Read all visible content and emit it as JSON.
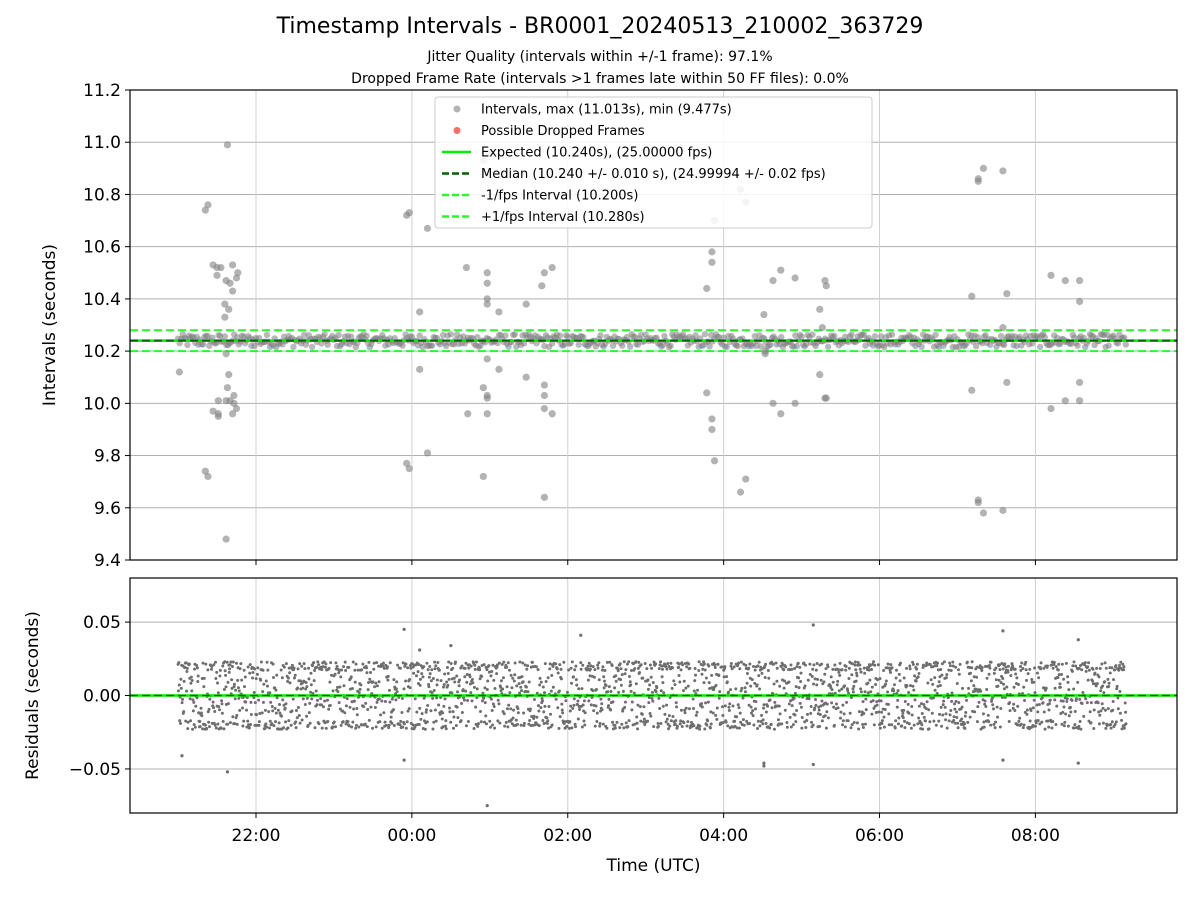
{
  "title": "Timestamp Intervals - BR0001_20240513_210002_363729",
  "subtitle_1": "Jitter Quality (intervals within +/-1 frame): 97.1%",
  "subtitle_2": "Dropped Frame Rate (intervals >1 frames late within 50 FF files): 0.0%",
  "colors": {
    "intervals": "#808080",
    "dropped": "#ff5a5a",
    "expected": "#00ee00",
    "median": "#006400",
    "fps_bounds": "#22ff22",
    "grid": "#b0b0b0"
  },
  "chart_data": [
    {
      "type": "scatter",
      "ylabel": "Intervals (seconds)",
      "ylim": [
        9.4,
        11.2
      ],
      "yticks": [
        "9.4",
        "9.6",
        "9.8",
        "10.0",
        "10.2",
        "10.4",
        "10.6",
        "10.8",
        "11.0",
        "11.2"
      ],
      "xlim": [
        "20:23",
        "09:49"
      ],
      "grid": true,
      "legend_placement": "upper center",
      "legend": [
        {
          "label": "Intervals, max (11.013s), min (9.477s)",
          "kind": "marker",
          "color": "#808080"
        },
        {
          "label": "Possible Dropped Frames",
          "kind": "marker",
          "color": "#ff5a5a"
        },
        {
          "label": "Expected (10.240s), (25.00000 fps)",
          "kind": "solid",
          "color": "#00ee00"
        },
        {
          "label": "Median (10.240 +/- 0.010 s), (24.99994 +/- 0.02 fps)",
          "kind": "dashed",
          "color": "#006400"
        },
        {
          "label": "-1/fps Interval (10.200s)",
          "kind": "dashed",
          "color": "#22ff22"
        },
        {
          "label": "+1/fps Interval (10.280s)",
          "kind": "dashed",
          "color": "#22ff22"
        }
      ],
      "reference_lines": {
        "expected": 10.24,
        "median": 10.24,
        "minus_one_frame": 10.2,
        "plus_one_frame": 10.28
      },
      "band": {
        "start": "21:00",
        "end": "09:10",
        "ymin": 10.215,
        "ymax": 10.265
      },
      "outliers": [
        [
          "21:01",
          10.12
        ],
        [
          "21:21",
          10.74
        ],
        [
          "21:23",
          10.76
        ],
        [
          "21:21",
          9.74
        ],
        [
          "21:23",
          9.72
        ],
        [
          "21:27",
          10.53
        ],
        [
          "21:27",
          9.97
        ],
        [
          "21:30",
          10.52
        ],
        [
          "21:30",
          10.49
        ],
        [
          "21:31",
          10.01
        ],
        [
          "21:31",
          9.96
        ],
        [
          "21:31",
          9.95
        ],
        [
          "21:33",
          10.52
        ],
        [
          "21:36",
          10.33
        ],
        [
          "21:36",
          10.38
        ],
        [
          "21:37",
          10.47
        ],
        [
          "21:37",
          10.19
        ],
        [
          "21:37",
          10.01
        ],
        [
          "21:37",
          9.48
        ],
        [
          "21:38",
          10.99
        ],
        [
          "21:38",
          10.06
        ],
        [
          "21:39",
          10.11
        ],
        [
          "21:39",
          10.36
        ],
        [
          "21:40",
          10.46
        ],
        [
          "21:40",
          10.01
        ],
        [
          "21:42",
          10.53
        ],
        [
          "21:42",
          9.96
        ],
        [
          "21:42",
          10.43
        ],
        [
          "21:43",
          10.03
        ],
        [
          "21:43",
          10.0
        ],
        [
          "21:45",
          10.48
        ],
        [
          "21:45",
          9.98
        ],
        [
          "21:46",
          10.5
        ],
        [
          "23:56",
          10.72
        ],
        [
          "23:58",
          10.73
        ],
        [
          "23:56",
          9.77
        ],
        [
          "23:58",
          9.75
        ],
        [
          "00:06",
          10.35
        ],
        [
          "00:06",
          10.13
        ],
        [
          "00:12",
          10.67
        ],
        [
          "00:12",
          9.81
        ],
        [
          "00:42",
          10.52
        ],
        [
          "00:43",
          9.96
        ],
        [
          "00:55",
          10.93
        ],
        [
          "00:55",
          10.06
        ],
        [
          "00:55",
          9.72
        ],
        [
          "00:58",
          10.5
        ],
        [
          "00:58",
          10.4
        ],
        [
          "00:58",
          10.38
        ],
        [
          "00:58",
          10.46
        ],
        [
          "00:58",
          10.17
        ],
        [
          "00:58",
          10.03
        ],
        [
          "00:58",
          10.02
        ],
        [
          "00:58",
          9.96
        ],
        [
          "00:59",
          10.96
        ],
        [
          "01:07",
          10.35
        ],
        [
          "01:07",
          10.13
        ],
        [
          "01:28",
          10.38
        ],
        [
          "01:28",
          10.1
        ],
        [
          "01:40",
          10.45
        ],
        [
          "01:42",
          10.5
        ],
        [
          "01:42",
          10.03
        ],
        [
          "01:42",
          10.07
        ],
        [
          "01:42",
          9.98
        ],
        [
          "01:42",
          9.64
        ],
        [
          "01:48",
          10.52
        ],
        [
          "01:48",
          9.96
        ],
        [
          "03:47",
          10.44
        ],
        [
          "03:47",
          10.04
        ],
        [
          "03:51",
          10.58
        ],
        [
          "03:51",
          10.54
        ],
        [
          "03:51",
          9.94
        ],
        [
          "03:51",
          9.9
        ],
        [
          "03:53",
          10.7
        ],
        [
          "03:53",
          9.78
        ],
        [
          "04:13",
          10.82
        ],
        [
          "04:13",
          9.66
        ],
        [
          "04:17",
          10.77
        ],
        [
          "04:17",
          9.71
        ],
        [
          "04:31",
          10.34
        ],
        [
          "04:32",
          10.2
        ],
        [
          "04:32",
          10.19
        ],
        [
          "04:38",
          10.47
        ],
        [
          "04:38",
          10.0
        ],
        [
          "04:44",
          10.51
        ],
        [
          "04:44",
          9.96
        ],
        [
          "04:55",
          10.48
        ],
        [
          "04:55",
          10.0
        ],
        [
          "05:14",
          10.36
        ],
        [
          "05:14",
          10.11
        ],
        [
          "05:16",
          10.29
        ],
        [
          "05:18",
          10.47
        ],
        [
          "05:18",
          10.02
        ],
        [
          "05:19",
          10.45
        ],
        [
          "05:19",
          10.02
        ],
        [
          "07:11",
          10.41
        ],
        [
          "07:11",
          10.05
        ],
        [
          "07:16",
          10.85
        ],
        [
          "07:16",
          10.86
        ],
        [
          "07:16",
          9.62
        ],
        [
          "07:16",
          9.63
        ],
        [
          "07:20",
          10.9
        ],
        [
          "07:20",
          9.58
        ],
        [
          "07:35",
          10.89
        ],
        [
          "07:35",
          10.29
        ],
        [
          "07:35",
          9.59
        ],
        [
          "07:38",
          10.42
        ],
        [
          "07:38",
          10.08
        ],
        [
          "08:12",
          10.49
        ],
        [
          "08:12",
          9.98
        ],
        [
          "08:23",
          10.47
        ],
        [
          "08:23",
          10.01
        ],
        [
          "08:34",
          10.47
        ],
        [
          "08:34",
          10.39
        ],
        [
          "08:34",
          10.08
        ],
        [
          "08:34",
          10.01
        ]
      ]
    },
    {
      "type": "scatter",
      "xlabel": "Time (UTC)",
      "ylabel": "Residuals (seconds)",
      "ylim": [
        -0.08,
        0.08
      ],
      "yticks": [
        "−0.05",
        "0.00",
        "0.05"
      ],
      "xticks": [
        "22:00",
        "00:00",
        "02:00",
        "04:00",
        "06:00",
        "08:00"
      ],
      "xlim": [
        "20:23",
        "09:49"
      ],
      "grid": true,
      "time_span": [
        "21:00",
        "09:10"
      ],
      "residual_band_levels": [
        -0.02,
        0.0,
        0.02
      ],
      "residual_range": [
        -0.075,
        0.048
      ],
      "outliers": [
        [
          "21:03",
          -0.041
        ],
        [
          "21:38",
          -0.052
        ],
        [
          "23:54",
          0.045
        ],
        [
          "23:54",
          -0.044
        ],
        [
          "00:06",
          0.031
        ],
        [
          "00:30",
          0.034
        ],
        [
          "00:58",
          -0.075
        ],
        [
          "02:10",
          0.041
        ],
        [
          "04:31",
          -0.046
        ],
        [
          "04:31",
          -0.048
        ],
        [
          "05:09",
          0.048
        ],
        [
          "05:09",
          -0.047
        ],
        [
          "07:35",
          0.044
        ],
        [
          "07:35",
          -0.044
        ],
        [
          "08:33",
          0.038
        ],
        [
          "08:33",
          -0.046
        ]
      ]
    }
  ]
}
